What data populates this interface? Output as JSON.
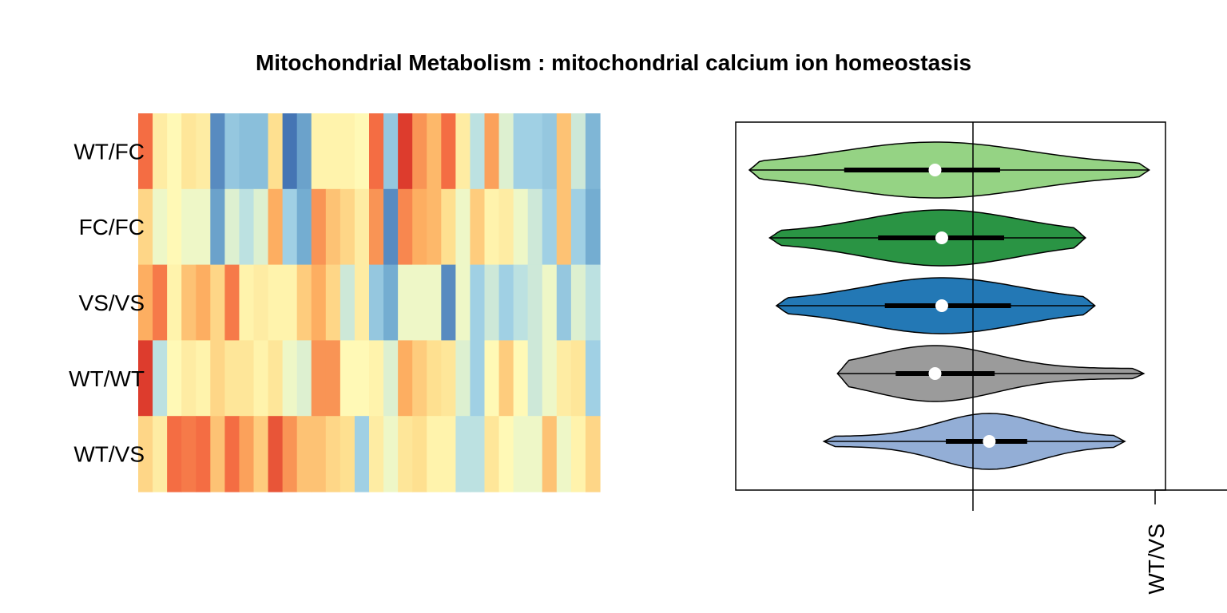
{
  "chart_data": [
    {
      "type": "heatmap",
      "title": "Mitochondrial Metabolism : mitochondrial calcium ion homeostasis",
      "rows": [
        "WT/FC",
        "FC/FC",
        "VS/VS",
        "WT/WT",
        "WT/VS"
      ],
      "values": [
        [
          1.5,
          0.3,
          0.1,
          0.4,
          0.3,
          -1.3,
          -0.7,
          -0.8,
          -0.8,
          0.5,
          -1.5,
          -1.1,
          0.2,
          0.2,
          0.2,
          0.1,
          1.5,
          -0.7,
          1.9,
          1.2,
          0.9,
          1.5,
          0.3,
          -0.4,
          1.1,
          -0.2,
          -0.6,
          -0.6,
          -0.7,
          0.8,
          -0.3,
          -0.9
        ],
        [
          0.6,
          -0.1,
          0.1,
          -0.1,
          -0.1,
          -1.1,
          -0.2,
          -0.4,
          -0.2,
          1.0,
          -0.6,
          -1.0,
          1.2,
          0.8,
          0.6,
          0.3,
          1.2,
          -1.3,
          1.3,
          1.0,
          0.9,
          0.5,
          -0.1,
          0.7,
          0.2,
          0.3,
          -0.1,
          -0.3,
          -0.6,
          0.8,
          -0.6,
          -1.0
        ],
        [
          1.0,
          1.4,
          0.2,
          0.8,
          1.0,
          0.6,
          1.4,
          0.2,
          0.3,
          0.2,
          0.2,
          0.7,
          1.0,
          0.6,
          -0.3,
          0.3,
          -0.7,
          -1.0,
          -0.1,
          -0.1,
          -0.1,
          -1.3,
          -0.1,
          -0.6,
          -0.3,
          -0.6,
          -0.4,
          -0.3,
          -0.1,
          -0.7,
          -0.2,
          -0.4
        ],
        [
          1.9,
          -0.4,
          0.1,
          0.3,
          0.2,
          0.6,
          0.4,
          0.4,
          0.2,
          0.4,
          -0.1,
          -0.2,
          1.2,
          1.2,
          0.1,
          0.1,
          0.2,
          -0.2,
          1.0,
          0.7,
          0.5,
          0.4,
          -0.2,
          -0.6,
          0.1,
          0.7,
          0.1,
          -0.3,
          -0.1,
          0.3,
          0.4,
          -0.6
        ],
        [
          0.6,
          0.3,
          1.5,
          1.4,
          1.5,
          0.8,
          1.5,
          1.1,
          0.7,
          1.7,
          1.2,
          0.8,
          0.8,
          0.6,
          0.5,
          -0.6,
          0.3,
          -0.1,
          0.4,
          0.5,
          0.2,
          0.2,
          -0.4,
          -0.4,
          0.4,
          0.1,
          -0.1,
          -0.1,
          0.8,
          -0.1,
          0.2,
          0.6
        ]
      ]
    },
    {
      "type": "violin",
      "orientation": "horizontal",
      "categories": [
        "WT/FC",
        "FC/FC",
        "VS/VS",
        "WT/WT",
        "WT/VS"
      ],
      "series": [
        {
          "label": "WT/FC",
          "min": -1.65,
          "q1": -0.95,
          "median": -0.28,
          "q3": 0.2,
          "max": 1.3,
          "color": "#95d384"
        },
        {
          "label": "FC/FC",
          "min": -1.5,
          "q1": -0.7,
          "median": -0.23,
          "q3": 0.23,
          "max": 0.83,
          "color": "#2a9444"
        },
        {
          "label": "VS/VS",
          "min": -1.45,
          "q1": -0.65,
          "median": -0.23,
          "q3": 0.28,
          "max": 0.9,
          "color": "#2378b5"
        },
        {
          "label": "WT/WT",
          "min": -1.0,
          "q1": -0.57,
          "median": -0.28,
          "q3": 0.16,
          "max": 1.26,
          "color": "#9b9b9b"
        },
        {
          "label": "WT/VS",
          "min": -1.1,
          "q1": -0.2,
          "median": 0.12,
          "q3": 0.4,
          "max": 1.12,
          "color": "#93aed6"
        }
      ],
      "reference_line": 0,
      "axis_tick_labels": [
        "WT/VS"
      ],
      "xlim": [
        -1.75,
        1.42
      ]
    }
  ]
}
